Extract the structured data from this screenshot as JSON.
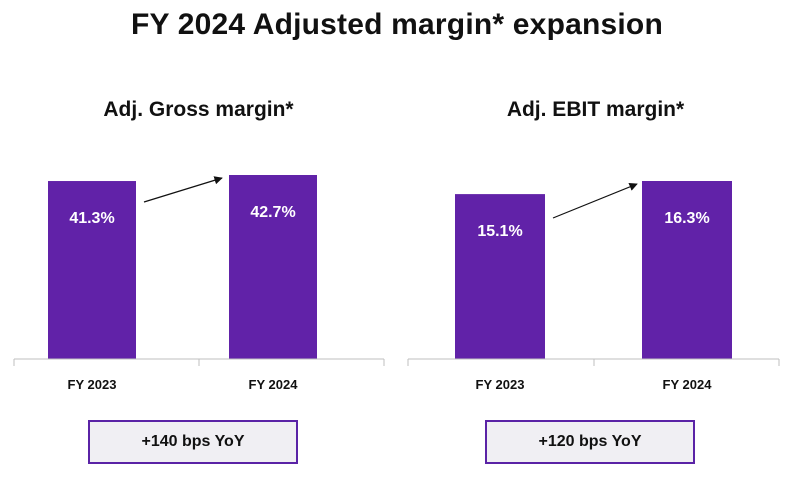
{
  "title": "FY 2024 Adjusted margin* expansion",
  "colors": {
    "bar": "#6122a8",
    "box_border": "#5a23a6",
    "box_bg": "#f0eff3"
  },
  "chart_data": [
    {
      "type": "bar",
      "title": "Adj. Gross margin*",
      "categories": [
        "FY 2023",
        "FY 2024"
      ],
      "values": [
        41.3,
        42.7
      ],
      "value_labels": [
        "41.3%",
        "42.7%"
      ],
      "xlabel": "",
      "ylabel": "",
      "arrow": "FY 2023 to FY 2024",
      "yoy": "+140 bps YoY"
    },
    {
      "type": "bar",
      "title": "Adj. EBIT margin*",
      "categories": [
        "FY 2023",
        "FY 2024"
      ],
      "values": [
        15.1,
        16.3
      ],
      "value_labels": [
        "15.1%",
        "16.3%"
      ],
      "xlabel": "",
      "ylabel": "",
      "arrow": "FY 2023 to FY 2024",
      "yoy": "+120 bps YoY"
    }
  ]
}
